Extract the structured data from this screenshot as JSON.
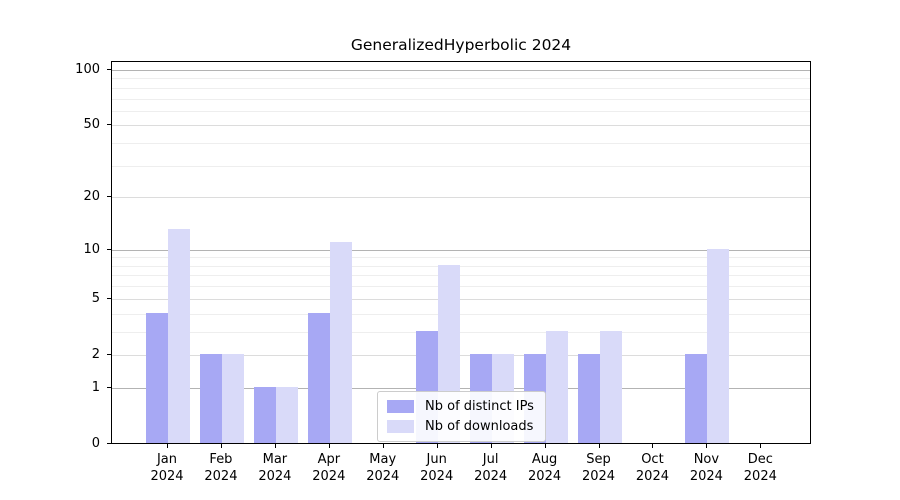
{
  "chart_data": {
    "type": "bar",
    "title": "GeneralizedHyperbolic 2024",
    "categories": [
      "Jan",
      "Feb",
      "Mar",
      "Apr",
      "May",
      "Jun",
      "Jul",
      "Aug",
      "Sep",
      "Oct",
      "Nov",
      "Dec"
    ],
    "category_year": "2024",
    "series": [
      {
        "name": "Nb of distinct IPs",
        "color": "#a7a8f4",
        "values": [
          4,
          2,
          1,
          4,
          0,
          3,
          2,
          2,
          2,
          0,
          2,
          0
        ]
      },
      {
        "name": "Nb of downloads",
        "color": "#d9daf9",
        "values": [
          13,
          2,
          1,
          11,
          0,
          8,
          2,
          3,
          3,
          0,
          10,
          0
        ]
      }
    ],
    "xlabel": "",
    "ylabel": "",
    "y_scale": "log1p",
    "y_max": 111.8,
    "y_ticks": [
      0,
      1,
      2,
      5,
      10,
      20,
      50,
      100
    ],
    "grid": {
      "on": true,
      "decade_lines": [
        1,
        10,
        100
      ],
      "labeled_lines": [
        2,
        5,
        20,
        50
      ],
      "minor_lines": [
        3,
        4,
        6,
        7,
        8,
        9,
        30,
        40,
        60,
        70,
        80,
        90
      ],
      "decade_color": "#b3b3b3",
      "labeled_color": "#dcdcdc",
      "minor_color": "#eeeeee"
    },
    "legend": {
      "position": "lower center",
      "entries": [
        "Nb of distinct IPs",
        "Nb of downloads"
      ]
    }
  }
}
